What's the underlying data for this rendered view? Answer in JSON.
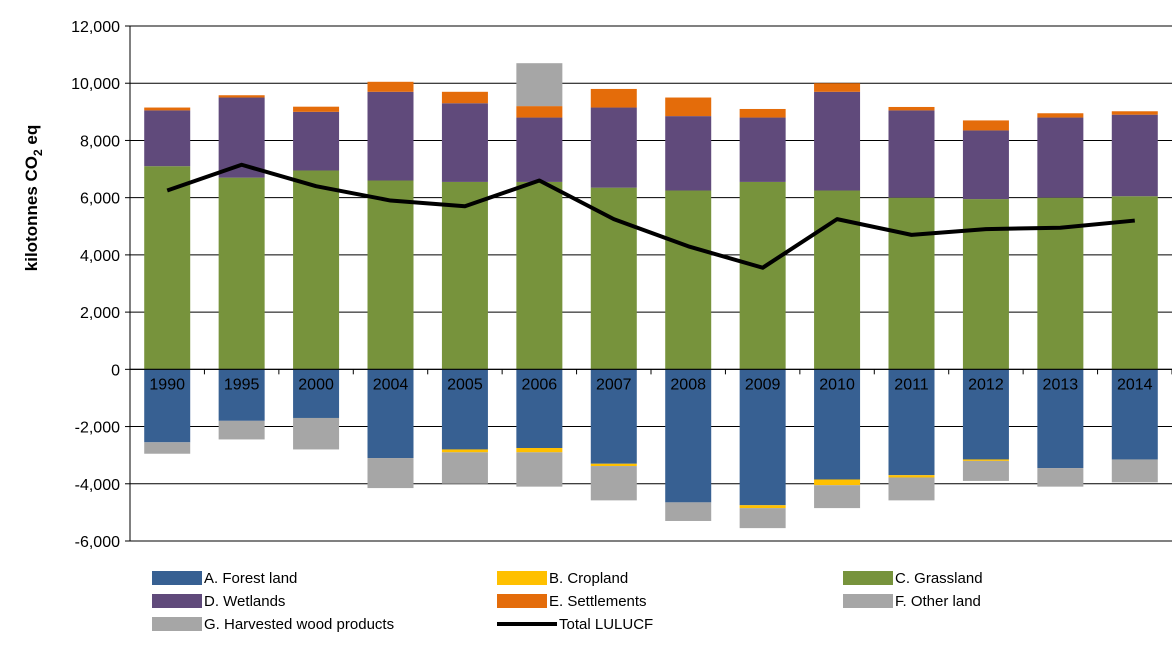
{
  "chart_data": {
    "type": "bar",
    "subtype": "stacked-bar-with-line",
    "title": "",
    "xlabel": "",
    "ylabel": "kilotonnes CO2 eq",
    "ylabel_parts": {
      "main": "kilotonnes CO",
      "sub": "2",
      "tail": " eq"
    },
    "ylim": [
      -6000,
      12000
    ],
    "ytick_step": 2000,
    "ytick_labels": [
      "-6,000",
      "-4,000",
      "-2,000",
      "0",
      "2,000",
      "4,000",
      "6,000",
      "8,000",
      "10,000",
      "12,000"
    ],
    "categories": [
      "1990",
      "1995",
      "2000",
      "2004",
      "2005",
      "2006",
      "2007",
      "2008",
      "2009",
      "2010",
      "2011",
      "2012",
      "2013",
      "2014"
    ],
    "grid": "horizontal",
    "legend_position": "bottom",
    "series": [
      {
        "name": "A.  Forest land",
        "color": "#376092",
        "kind": "bar",
        "values": [
          -2550,
          -1800,
          -1700,
          -3100,
          -2800,
          -2750,
          -3300,
          -4650,
          -4750,
          -3850,
          -3700,
          -3150,
          -3450,
          -3150
        ]
      },
      {
        "name": "B.  Cropland",
        "color": "#ffc000",
        "kind": "bar",
        "values": [
          0,
          0,
          0,
          0,
          -100,
          -150,
          -80,
          0,
          -100,
          -200,
          -80,
          -50,
          0,
          0
        ]
      },
      {
        "name": "C.  Grassland",
        "color": "#77933c",
        "kind": "bar",
        "values": [
          7100,
          6700,
          6950,
          6600,
          6550,
          6550,
          6350,
          6250,
          6550,
          6250,
          6000,
          5950,
          6000,
          6050
        ]
      },
      {
        "name": "D.  Wetlands",
        "color": "#604a7b",
        "kind": "bar",
        "values": [
          1950,
          2800,
          2050,
          3100,
          2750,
          2250,
          2800,
          2600,
          2250,
          3450,
          3050,
          2400,
          2800,
          2850
        ]
      },
      {
        "name": "E.  Settlements",
        "color": "#e46c0a",
        "kind": "bar",
        "values": [
          100,
          80,
          180,
          350,
          400,
          400,
          650,
          650,
          300,
          300,
          120,
          350,
          150,
          120
        ]
      },
      {
        "name": "F.  Other land",
        "color": "#a6a6a6",
        "kind": "bar",
        "values": [
          0,
          0,
          0,
          0,
          0,
          1500,
          0,
          0,
          0,
          0,
          0,
          0,
          0,
          0
        ]
      },
      {
        "name": "G.  Harvested wood products",
        "color": "#a6a6a6",
        "kind": "bar",
        "values": [
          -400,
          -650,
          -1100,
          -1050,
          -1100,
          -1200,
          -1200,
          -650,
          -700,
          -800,
          -800,
          -700,
          -650,
          -800
        ]
      },
      {
        "name": "Total LULUCF",
        "color": "#000000",
        "kind": "line",
        "values": [
          6250,
          7150,
          6400,
          5900,
          5700,
          6600,
          5250,
          4300,
          3550,
          5250,
          4700,
          4900,
          4950,
          5200
        ]
      }
    ]
  }
}
